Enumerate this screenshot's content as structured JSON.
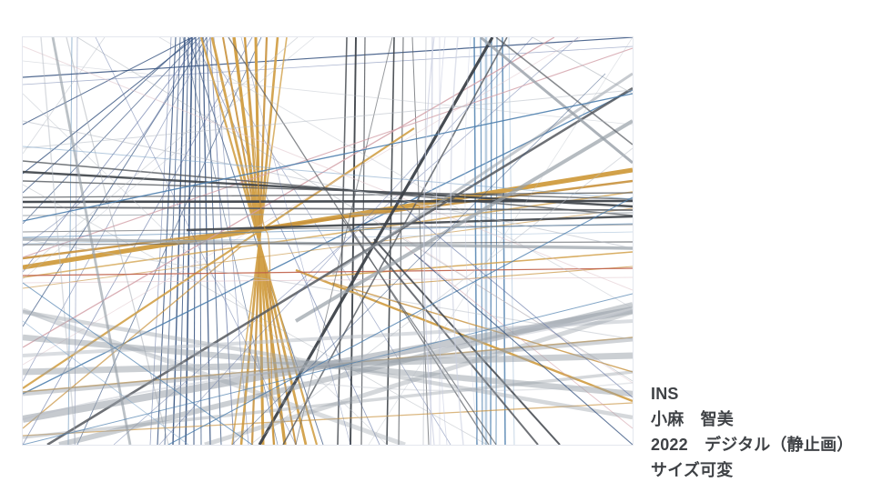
{
  "page": {
    "background": "#ffffff"
  },
  "caption": {
    "title": "INS",
    "artist": "小麻　智美",
    "year_medium": "2022　デジタル（静止画）",
    "size": "サイズ可変",
    "text_color": "#3f4246"
  },
  "artwork": {
    "alt": "abstract-crisscross-line-art",
    "frame_border": "#e4e7ee",
    "background": "#ffffff",
    "palette": {
      "navy": "#34517e",
      "navy2": "#5a6da0",
      "blue": "#4d7fae",
      "blue2": "#84a8ca",
      "gold": "#d2a149",
      "gold2": "#c8923d",
      "gray": "#98a0a8",
      "gray2": "#b6bcc5",
      "dark": "#55595f",
      "dark2": "#3e4349",
      "pink": "#d3a0a8",
      "pink2": "#e0c4ca",
      "salmon": "#bf5f48",
      "lav": "#c9cee0"
    },
    "lines": [
      [
        168,
        0,
        148,
        448,
        "navy",
        1.1,
        0.85
      ],
      [
        173,
        0,
        156,
        448,
        "navy",
        0.9,
        0.8
      ],
      [
        178,
        0,
        165,
        448,
        "navy",
        1.4,
        0.9
      ],
      [
        182,
        0,
        172,
        448,
        "navy",
        1.0,
        0.8
      ],
      [
        186,
        0,
        179,
        448,
        "navy",
        1.6,
        0.9
      ],
      [
        190,
        0,
        188,
        448,
        "navy",
        1.1,
        0.85
      ],
      [
        194,
        0,
        196,
        448,
        "navy",
        0.9,
        0.8
      ],
      [
        198,
        0,
        206,
        448,
        "navy",
        1.3,
        0.85
      ],
      [
        202,
        0,
        218,
        448,
        "navy",
        1.0,
        0.75
      ],
      [
        206,
        0,
        232,
        448,
        "navy2",
        1.0,
        0.7
      ],
      [
        163,
        0,
        140,
        448,
        "navy2",
        0.8,
        0.6
      ],
      [
        210,
        0,
        248,
        448,
        "navy2",
        0.8,
        0.55
      ],
      [
        54,
        0,
        50,
        448,
        "blue",
        0.9,
        0.6
      ],
      [
        60,
        0,
        57,
        448,
        "navy2",
        0.8,
        0.5
      ],
      [
        186,
        0,
        0,
        96,
        "navy",
        1.0,
        0.8
      ],
      [
        190,
        0,
        0,
        150,
        "navy",
        1.1,
        0.8
      ],
      [
        194,
        0,
        0,
        205,
        "navy",
        0.9,
        0.7
      ],
      [
        198,
        0,
        0,
        258,
        "navy2",
        0.9,
        0.65
      ],
      [
        202,
        0,
        0,
        318,
        "navy",
        1.0,
        0.7
      ],
      [
        206,
        0,
        0,
        378,
        "navy2",
        0.8,
        0.55
      ],
      [
        182,
        0,
        330,
        448,
        "navy",
        1.0,
        0.7
      ],
      [
        188,
        0,
        392,
        448,
        "navy2",
        0.9,
        0.6
      ],
      [
        176,
        0,
        280,
        448,
        "navy",
        0.8,
        0.6
      ],
      [
        196,
        0,
        470,
        448,
        "navy2",
        0.8,
        0.5
      ],
      [
        0,
        44,
        670,
        0,
        "navy",
        1.2,
        0.85
      ],
      [
        0,
        52,
        670,
        10,
        "navy2",
        0.8,
        0.5
      ],
      [
        0,
        171,
        186,
        0,
        "navy",
        1.0,
        0.75
      ],
      [
        0,
        448,
        252,
        0,
        "navy2",
        0.9,
        0.6
      ],
      [
        60,
        448,
        262,
        0,
        "navy",
        0.9,
        0.65
      ],
      [
        0,
        392,
        670,
        58,
        "blue",
        1.3,
        0.9
      ],
      [
        100,
        448,
        610,
        0,
        "navy2",
        0.8,
        0.5
      ],
      [
        496,
        0,
        499,
        448,
        "blue",
        1.5,
        0.85
      ],
      [
        503,
        0,
        505,
        448,
        "blue",
        1.1,
        0.8
      ],
      [
        509,
        0,
        509,
        448,
        "blue2",
        2.6,
        0.55
      ],
      [
        515,
        0,
        514,
        448,
        "blue",
        1.3,
        0.85
      ],
      [
        521,
        0,
        520,
        448,
        "blue",
        1.0,
        0.75
      ],
      [
        527,
        0,
        530,
        448,
        "blue",
        1.6,
        0.8
      ],
      [
        534,
        0,
        540,
        448,
        "blue2",
        0.9,
        0.5
      ],
      [
        443,
        0,
        440,
        448,
        "gray2",
        1.0,
        0.6
      ],
      [
        450,
        0,
        448,
        448,
        "lav",
        1.3,
        0.75
      ],
      [
        458,
        0,
        458,
        448,
        "lav",
        0.9,
        0.65
      ],
      [
        356,
        0,
        346,
        448,
        "dark",
        1.6,
        0.9
      ],
      [
        366,
        0,
        360,
        448,
        "dark2",
        1.9,
        0.95
      ],
      [
        376,
        0,
        372,
        448,
        "dark",
        1.2,
        0.85
      ],
      [
        408,
        0,
        400,
        448,
        "dark2",
        1.6,
        0.9
      ],
      [
        418,
        0,
        413,
        448,
        "dark",
        1.1,
        0.8
      ],
      [
        428,
        0,
        446,
        448,
        "dark",
        1.0,
        0.7
      ],
      [
        196,
        0,
        323,
        448,
        "gold",
        2.2,
        0.9
      ],
      [
        208,
        0,
        311,
        448,
        "gold",
        2.8,
        0.95
      ],
      [
        220,
        0,
        300,
        448,
        "gold2",
        2.0,
        0.9
      ],
      [
        232,
        0,
        288,
        448,
        "gold",
        3.4,
        1
      ],
      [
        244,
        0,
        276,
        448,
        "gold",
        2.4,
        0.95
      ],
      [
        256,
        0,
        264,
        448,
        "gold",
        3.0,
        1
      ],
      [
        268,
        0,
        252,
        448,
        "gold2",
        2.2,
        0.9
      ],
      [
        280,
        0,
        240,
        448,
        "gold",
        2.6,
        0.95
      ],
      [
        290,
        0,
        230,
        448,
        "gold",
        1.6,
        0.8
      ],
      [
        0,
        253,
        670,
        146,
        "gold",
        5,
        1
      ],
      [
        0,
        243,
        670,
        158,
        "gold2",
        2.4,
        0.9
      ],
      [
        0,
        264,
        670,
        170,
        "gold",
        1.6,
        0.75
      ],
      [
        0,
        276,
        670,
        188,
        "gold2",
        1.0,
        0.6
      ],
      [
        0,
        386,
        430,
        100,
        "gold",
        2.2,
        0.9
      ],
      [
        300,
        256,
        670,
        400,
        "gold",
        2.4,
        0.95
      ],
      [
        340,
        270,
        670,
        368,
        "gold2",
        1.4,
        0.8
      ],
      [
        330,
        263,
        670,
        236,
        "gold",
        1.5,
        0.85
      ],
      [
        350,
        276,
        670,
        252,
        "gold2",
        1.1,
        0.7
      ],
      [
        0,
        430,
        240,
        230,
        "gold2",
        1.4,
        0.7
      ],
      [
        0,
        390,
        670,
        330,
        "gold2",
        1.6,
        0.75
      ],
      [
        0,
        438,
        670,
        402,
        "gold2",
        1.3,
        0.65
      ],
      [
        0,
        262,
        670,
        254,
        "salmon",
        1.2,
        0.9
      ],
      [
        0,
        270,
        670,
        264,
        "pink2",
        0.8,
        0.7
      ],
      [
        0,
        341,
        584,
        0,
        "pink",
        1.3,
        0.85
      ],
      [
        0,
        242,
        670,
        12,
        "pink",
        1.1,
        0.8
      ],
      [
        0,
        360,
        612,
        0,
        "pink2",
        0.8,
        0.55
      ],
      [
        0,
        10,
        670,
        278,
        "pink2",
        1.0,
        0.55
      ],
      [
        420,
        230,
        670,
        430,
        "pink",
        0.9,
        0.6
      ],
      [
        380,
        196,
        670,
        380,
        "pink2",
        0.8,
        0.5
      ],
      [
        0,
        136,
        670,
        196,
        "dark",
        1.6,
        0.8
      ],
      [
        0,
        148,
        670,
        186,
        "dark2",
        2.4,
        0.9
      ],
      [
        0,
        158,
        670,
        178,
        "dark",
        1.4,
        0.8
      ],
      [
        0,
        176,
        670,
        171,
        "dark",
        1.3,
        0.8
      ],
      [
        0,
        181,
        670,
        180,
        "dark2",
        2.6,
        0.95
      ],
      [
        0,
        187,
        670,
        190,
        "dark",
        1.8,
        0.85
      ],
      [
        0,
        196,
        670,
        193,
        "gray",
        1.2,
        0.7
      ],
      [
        180,
        212,
        670,
        197,
        "dark2",
        2.4,
        0.9
      ],
      [
        0,
        214,
        670,
        206,
        "dark",
        1.1,
        0.6
      ],
      [
        0,
        222,
        670,
        232,
        "gray",
        3.5,
        0.7
      ],
      [
        0,
        228,
        670,
        225,
        "dark",
        1.4,
        0.6
      ],
      [
        0,
        220,
        670,
        205,
        "blue",
        1.0,
        0.6
      ],
      [
        0,
        227,
        670,
        214,
        "blue2",
        0.8,
        0.5
      ],
      [
        516,
        0,
        260,
        448,
        "dark2",
        3.2,
        0.95
      ],
      [
        532,
        0,
        286,
        448,
        "dark",
        1.6,
        0.8
      ],
      [
        370,
        212,
        566,
        448,
        "dark",
        2.0,
        0.85
      ],
      [
        386,
        222,
        590,
        448,
        "dark2",
        2.0,
        0.85
      ],
      [
        350,
        198,
        520,
        448,
        "dark",
        1.2,
        0.7
      ],
      [
        406,
        0,
        300,
        448,
        "dark",
        1.0,
        0.6
      ],
      [
        226,
        0,
        512,
        448,
        "dark",
        1.3,
        0.7
      ],
      [
        670,
        56,
        27,
        448,
        "dark",
        2.6,
        0.85
      ],
      [
        670,
        92,
        300,
        312,
        "gray",
        4.0,
        0.7
      ],
      [
        670,
        40,
        340,
        260,
        "gray",
        3.0,
        0.55
      ],
      [
        503,
        0,
        670,
        138,
        "gray",
        3.0,
        0.8
      ],
      [
        520,
        0,
        670,
        118,
        "dark",
        1.6,
        0.7
      ],
      [
        0,
        420,
        670,
        300,
        "gray",
        8,
        0.55
      ],
      [
        0,
        368,
        670,
        350,
        "gray",
        7,
        0.5
      ],
      [
        0,
        330,
        670,
        392,
        "gray",
        6.5,
        0.5
      ],
      [
        0,
        392,
        670,
        332,
        "gray",
        5,
        0.45
      ],
      [
        0,
        302,
        670,
        418,
        "gray",
        4.5,
        0.4
      ],
      [
        40,
        448,
        670,
        294,
        "gray",
        6,
        0.5
      ],
      [
        0,
        350,
        670,
        312,
        "gray2",
        4,
        0.5
      ],
      [
        0,
        300,
        420,
        448,
        "gray",
        5,
        0.35
      ],
      [
        200,
        448,
        670,
        302,
        "gray",
        5,
        0.4
      ],
      [
        0,
        440,
        670,
        368,
        "gray",
        3.5,
        0.4
      ],
      [
        33,
        0,
        118,
        448,
        "gray",
        2.8,
        0.65
      ],
      [
        20,
        0,
        58,
        448,
        "gray2",
        1.4,
        0.5
      ],
      [
        48,
        0,
        160,
        448,
        "gray",
        1.2,
        0.45
      ],
      [
        0,
        92,
        670,
        232,
        "gray2",
        1.0,
        0.6
      ],
      [
        0,
        122,
        670,
        58,
        "gray2",
        1.0,
        0.55
      ],
      [
        0,
        222,
        670,
        332,
        "gray2",
        1.1,
        0.5
      ],
      [
        60,
        0,
        670,
        378,
        "gray",
        0.9,
        0.45
      ],
      [
        0,
        62,
        400,
        448,
        "gray2",
        0.9,
        0.45
      ],
      [
        150,
        0,
        670,
        298,
        "gray2",
        0.9,
        0.45
      ],
      [
        0,
        258,
        302,
        0,
        "gray2",
        0.9,
        0.5
      ],
      [
        0,
        162,
        510,
        448,
        "gray",
        0.8,
        0.4
      ],
      [
        250,
        448,
        670,
        122,
        "gray2",
        1.0,
        0.5
      ],
      [
        0,
        26,
        670,
        96,
        "gray2",
        0.8,
        0.45
      ],
      [
        90,
        0,
        0,
        128,
        "gray2",
        0.9,
        0.5
      ],
      [
        320,
        0,
        0,
        266,
        "gray2",
        0.8,
        0.45
      ],
      [
        670,
        0,
        380,
        448,
        "gray2",
        0.8,
        0.4
      ],
      [
        560,
        0,
        670,
        62,
        "gray",
        0.9,
        0.5
      ],
      [
        0,
        202,
        670,
        62,
        "blue",
        1.3,
        0.9
      ],
      [
        0,
        120,
        670,
        178,
        "blue2",
        1.0,
        0.6
      ],
      [
        160,
        448,
        670,
        176,
        "blue",
        1.1,
        0.8
      ],
      [
        0,
        448,
        670,
        282,
        "blue",
        1.0,
        0.7
      ],
      [
        0,
        270,
        252,
        448,
        "blue",
        1.0,
        0.7
      ],
      [
        0,
        312,
        182,
        448,
        "blue2",
        0.9,
        0.6
      ],
      [
        430,
        238,
        670,
        448,
        "navy",
        1.1,
        0.75
      ],
      [
        410,
        180,
        670,
        396,
        "navy2",
        1.0,
        0.6
      ],
      [
        150,
        448,
        560,
        0,
        "navy2",
        0.8,
        0.5
      ],
      [
        230,
        448,
        640,
        40,
        "navy",
        0.8,
        0.55
      ],
      [
        300,
        448,
        80,
        0,
        "navy2",
        0.8,
        0.5
      ],
      [
        360,
        448,
        240,
        0,
        "navy2",
        0.7,
        0.45
      ]
    ],
    "curves": [
      [
        "M452,0 C436,140 438,300 452,448",
        "lav",
        1.1,
        0.75
      ],
      [
        "M464,0 C450,140 452,300 466,448",
        "lav",
        0.9,
        0.65
      ],
      [
        "M478,0 C466,130 468,290 484,448",
        "lav",
        1.5,
        0.6
      ],
      [
        "M492,0 C482,120 484,280 500,448",
        "lav",
        0.8,
        0.55
      ],
      [
        "M0,230 C120,150 170,60 185,0",
        "navy2",
        0.9,
        0.5
      ],
      [
        "M0,420 C220,360 440,360 670,300",
        "gray2",
        2,
        0.4
      ],
      [
        "M0,300 C200,390 460,400 670,380",
        "gray2",
        1.5,
        0.35
      ],
      [
        "M244,0 C258,160 262,210 268,214 C274,218 270,330 276,448",
        "gold2",
        1.3,
        0.7
      ]
    ]
  }
}
